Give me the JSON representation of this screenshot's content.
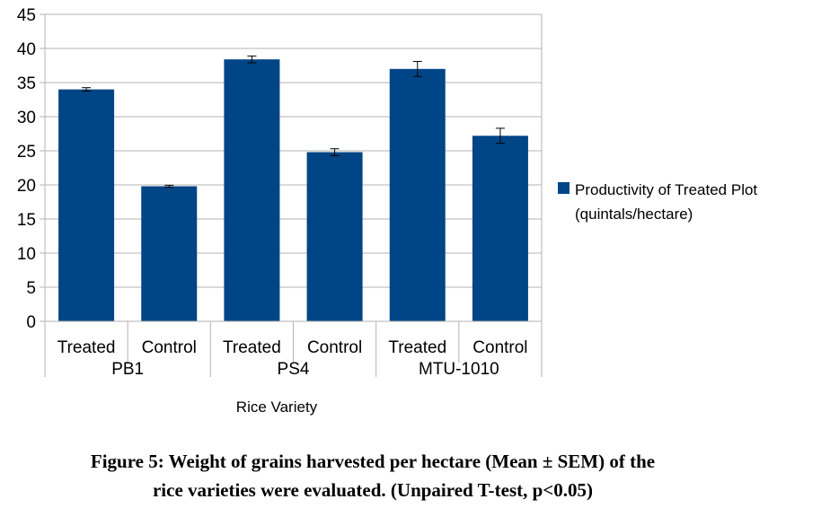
{
  "chart_data": {
    "type": "bar",
    "groups": [
      "PB1",
      "PS4",
      "MTU-1010"
    ],
    "categories": [
      "Treated",
      "Control",
      "Treated",
      "Control",
      "Treated",
      "Control"
    ],
    "series": [
      {
        "name": "Productivity of Treated Plot (quintals/hectare)",
        "values": [
          34.0,
          19.8,
          38.4,
          24.8,
          37.0,
          27.2
        ],
        "errors": [
          0.25,
          0.15,
          0.5,
          0.5,
          1.1,
          1.1
        ]
      }
    ],
    "ylim": [
      0,
      45
    ],
    "yticks": [
      "0",
      "5",
      "10",
      "15",
      "20",
      "25",
      "30",
      "35",
      "40",
      "45"
    ],
    "xlabel": "Rice Variety",
    "ylabel": "",
    "legend": {
      "line1": "Productivity of Treated Plot",
      "line2": "(quintals/hectare)",
      "position": "right"
    },
    "grid": true,
    "bar_color": "#004586"
  },
  "caption": {
    "line1": "Figure 5: Weight of grains harvested per hectare (Mean ± SEM) of the",
    "line2": "rice varieties were evaluated. (Unpaired T-test, p<0.05)"
  }
}
